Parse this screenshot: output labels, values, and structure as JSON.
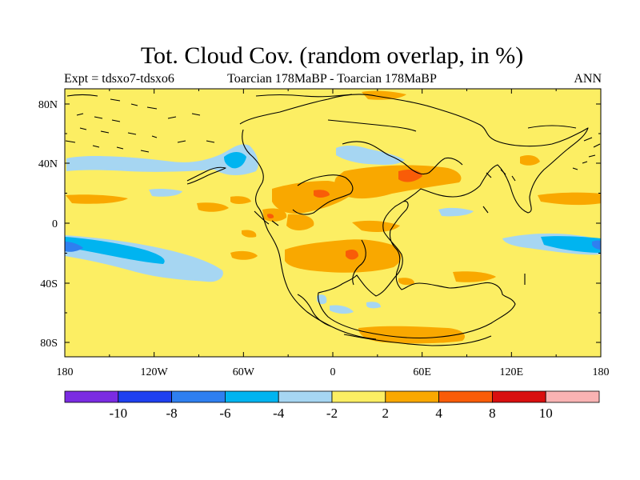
{
  "title": "Tot. Cloud Cov. (random overlap, in %)",
  "subtitle_left": "Expt = tdsxo7-tdsxo6",
  "subtitle_center": "Toarcian 178MaBP - Toarcian 178MaBP",
  "subtitle_right": "ANN",
  "x_ticks": [
    "180",
    "120W",
    "60W",
    "0",
    "60E",
    "120E",
    "180"
  ],
  "y_ticks": [
    "80N",
    "40N",
    "0",
    "40S",
    "80S"
  ],
  "colorbar": {
    "labels": [
      "-10",
      "-8",
      "-6",
      "-4",
      "-2",
      "2",
      "4",
      "8",
      "10"
    ],
    "colors": [
      "#7b2be2",
      "#1e40f0",
      "#2f7ff0",
      "#00b4f0",
      "#a6d6f2",
      "#fcee63",
      "#f9a800",
      "#f95c08",
      "#d90f0f",
      "#f9b3b3"
    ]
  },
  "palette": {
    "neutral": "#fcee63",
    "light_blue": "#a6d6f2",
    "blue": "#00b4f0",
    "mid_blue": "#2f7ff0",
    "orange": "#f9a800",
    "red_orange": "#f95c08",
    "outline": "#000000"
  }
}
